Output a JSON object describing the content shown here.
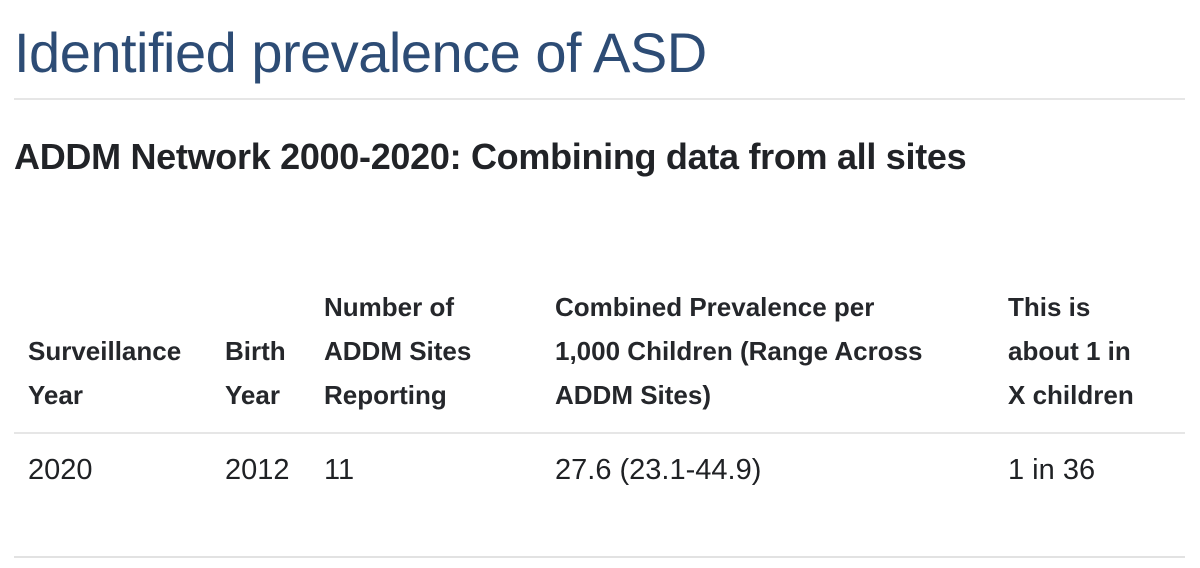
{
  "header": {
    "title": "Identified prevalence of ASD",
    "subtitle": "ADDM Network 2000-2020: Combining data from all sites"
  },
  "colors": {
    "title_blue": "#2d4c75",
    "text_dark": "#212327",
    "divider": "#e6e6e6"
  },
  "table": {
    "columns": [
      "Surveillance\nYear",
      "Birth\nYear",
      "Number of\nADDM Sites\nReporting",
      "Combined Prevalence per\n1,000 Children (Range Across\nADDM Sites)",
      "This is\nabout 1 in\nX children"
    ],
    "rows": [
      [
        "2020",
        "2012",
        "11",
        "27.6 (23.1-44.9)",
        "1 in 36"
      ]
    ]
  },
  "chart_data": {
    "type": "table",
    "title": "ADDM Network 2000-2020: Combining data from all sites",
    "columns": [
      "Surveillance Year",
      "Birth Year",
      "Number of ADDM Sites Reporting",
      "Combined Prevalence per 1,000 Children (Range Across ADDM Sites)",
      "This is about 1 in X children"
    ],
    "rows": [
      [
        "2020",
        "2012",
        "11",
        "27.6 (23.1-44.9)",
        "1 in 36"
      ]
    ]
  }
}
